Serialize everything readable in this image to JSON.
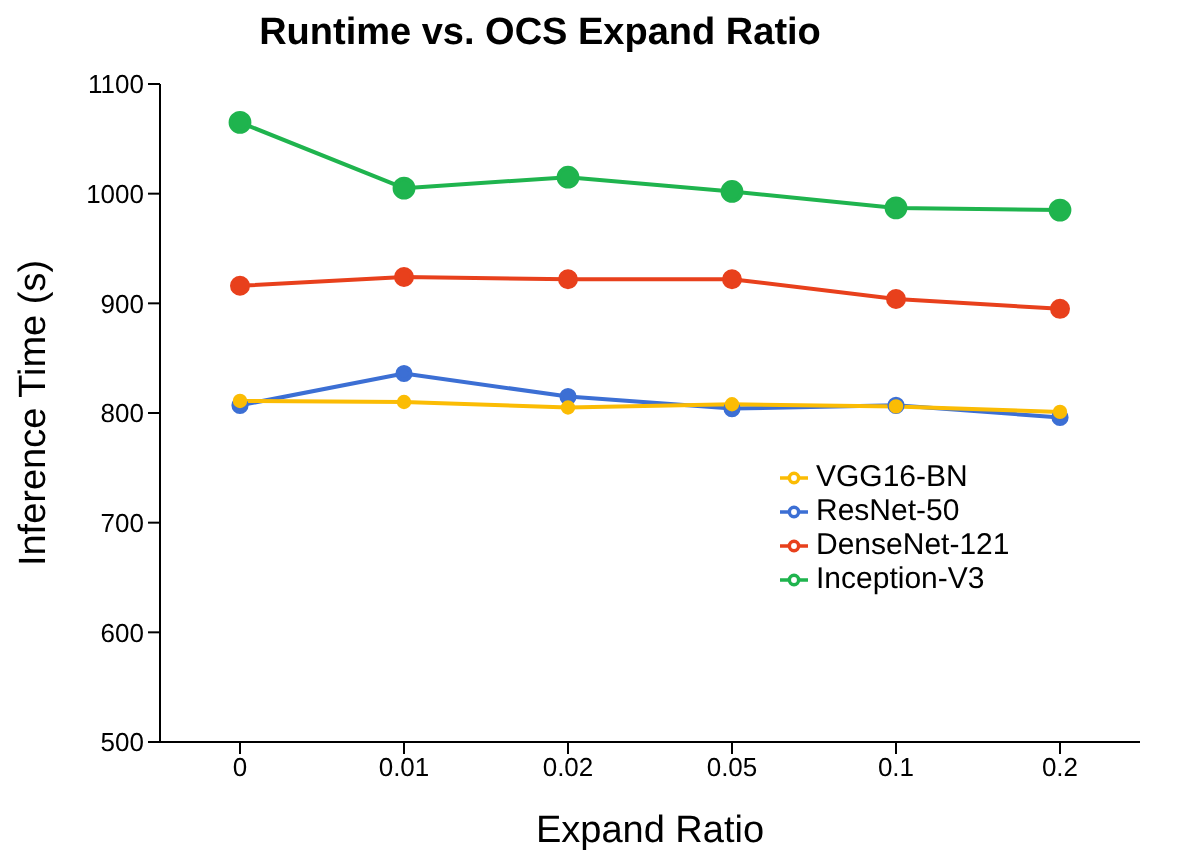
{
  "chart_data": {
    "type": "line",
    "title": "Runtime vs. OCS Expand Ratio",
    "xlabel": "Expand Ratio",
    "ylabel": "Inference Time (s)",
    "categories": [
      "0",
      "0.01",
      "0.02",
      "0.05",
      "0.1",
      "0.2"
    ],
    "series": [
      {
        "name": "VGG16-BN",
        "color": "#fbbc04",
        "values": [
          811,
          810,
          805,
          808,
          806,
          801
        ]
      },
      {
        "name": "ResNet-50",
        "color": "#3c6fd4",
        "values": [
          807,
          836,
          815,
          804,
          807,
          796
        ]
      },
      {
        "name": "DenseNet-121",
        "color": "#e8401c",
        "values": [
          916,
          924,
          922,
          922,
          904,
          895
        ]
      },
      {
        "name": "Inception-V3",
        "color": "#1fb44e",
        "values": [
          1065,
          1005,
          1015,
          1002,
          987,
          985
        ]
      }
    ],
    "ylim": [
      500,
      1100
    ],
    "yticks": [
      500,
      600,
      700,
      800,
      900,
      1000,
      1100
    ],
    "grid": false,
    "legend": "right",
    "marker": "circle",
    "line_style": "solid"
  }
}
